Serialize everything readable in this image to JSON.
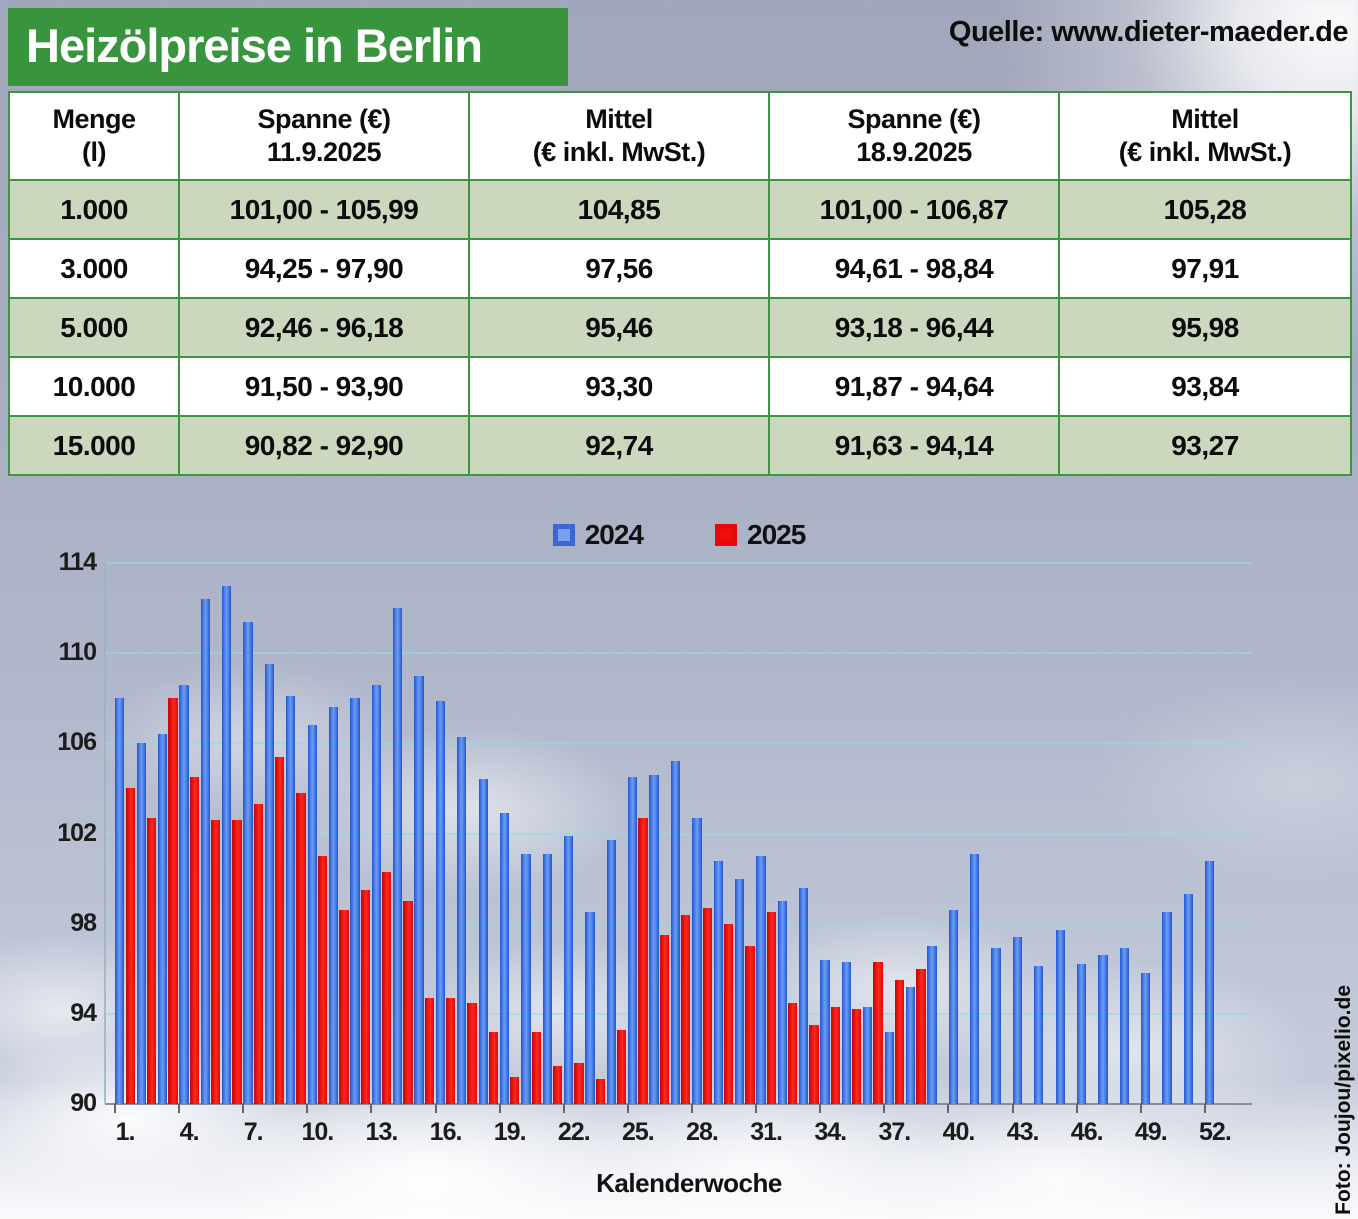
{
  "header": {
    "title": "Heizölpreise in Berlin",
    "source": "Quelle: www.dieter-maeder.de"
  },
  "table": {
    "columns": [
      "Menge\n(l)",
      "Spanne (€)\n11.9.2025",
      "Mittel\n(€ inkl. MwSt.)",
      "Spanne (€)\n18.9.2025",
      "Mittel\n(€ inkl. MwSt.)"
    ],
    "rows": [
      [
        "1.000",
        "101,00 - 105,99",
        "104,85",
        "101,00 - 106,87",
        "105,28"
      ],
      [
        "3.000",
        "94,25 - 97,90",
        "97,56",
        "94,61 - 98,84",
        "97,91"
      ],
      [
        "5.000",
        "92,46 - 96,18",
        "95,46",
        "93,18 - 96,44",
        "95,98"
      ],
      [
        "10.000",
        "91,50 - 93,90",
        "93,30",
        "91,87 - 94,64",
        "93,84"
      ],
      [
        "15.000",
        "90,82 - 92,90",
        "92,74",
        "91,63 - 94,14",
        "93,27"
      ]
    ]
  },
  "chart_data": {
    "type": "bar",
    "title": "",
    "xlabel": "Kalenderwoche",
    "ylabel": "",
    "ylim": [
      90,
      114
    ],
    "yticks": [
      90,
      94,
      98,
      102,
      106,
      110,
      114
    ],
    "xtick_labels": [
      "1.",
      "4.",
      "7.",
      "10.",
      "13.",
      "16.",
      "19.",
      "22.",
      "25.",
      "28.",
      "31.",
      "34.",
      "37.",
      "40.",
      "43.",
      "46.",
      "49.",
      "52."
    ],
    "grid": true,
    "legend_position": "top-center",
    "x_unit": "Kalenderwoche",
    "series": [
      {
        "name": "2024",
        "color": "#3b74e6",
        "values": [
          108.0,
          106.0,
          106.4,
          108.6,
          112.4,
          113.0,
          111.4,
          109.5,
          108.1,
          106.8,
          107.6,
          108.0,
          108.6,
          112.0,
          109.0,
          107.9,
          106.3,
          104.4,
          102.9,
          101.1,
          101.1,
          101.9,
          98.5,
          101.7,
          104.5,
          104.6,
          105.2,
          102.7,
          100.8,
          100.0,
          101.0,
          99.0,
          99.6,
          96.4,
          96.3,
          94.3,
          93.2,
          95.2,
          97.0,
          98.6,
          101.1,
          96.9,
          97.4,
          96.1,
          97.7,
          96.2,
          96.6,
          96.9,
          95.8,
          98.5,
          99.3,
          100.8
        ]
      },
      {
        "name": "2025",
        "color": "#ee1009",
        "values": [
          104.0,
          102.7,
          108.0,
          104.5,
          102.6,
          102.6,
          103.3,
          105.4,
          103.8,
          101.0,
          98.6,
          99.5,
          100.3,
          99.0,
          94.7,
          94.7,
          94.5,
          93.2,
          91.2,
          93.2,
          91.7,
          91.8,
          91.1,
          93.3,
          102.7,
          97.5,
          98.4,
          98.7,
          98.0,
          97.0,
          98.5,
          94.5,
          93.5,
          94.3,
          94.2,
          96.3,
          95.5,
          96.0
        ]
      }
    ]
  },
  "footer": {
    "photo_credit": "Foto: Joujou/pixelio.de"
  }
}
